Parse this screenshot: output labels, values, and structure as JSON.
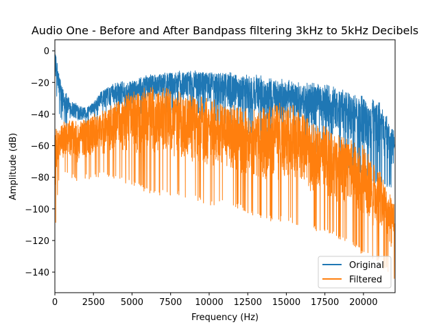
{
  "chart_data": {
    "type": "line",
    "title": "Audio One - Before and After Bandpass filtering 3kHz to 5kHz Decibels",
    "xlabel": "Frequency (Hz)",
    "ylabel": "Amplitude (dB)",
    "xlim": [
      0,
      22050
    ],
    "ylim": [
      -153,
      7
    ],
    "xticks": [
      0,
      2500,
      5000,
      7500,
      10000,
      12500,
      15000,
      17500,
      20000
    ],
    "xtick_labels": [
      "0",
      "2500",
      "5000",
      "7500",
      "10000",
      "12500",
      "15000",
      "17500",
      "20000"
    ],
    "yticks": [
      0,
      -20,
      -40,
      -60,
      -80,
      -100,
      -120,
      -140
    ],
    "ytick_labels": [
      "0",
      "−20",
      "−40",
      "−60",
      "−80",
      "−100",
      "−120",
      "−140"
    ],
    "grid": false,
    "legend_position": "bottom-right",
    "series": [
      {
        "name": "Original",
        "color": "#1f77b4",
        "x": [
          0,
          250,
          500,
          1000,
          1500,
          2000,
          2500,
          3000,
          3500,
          4000,
          5000,
          6000,
          7000,
          8000,
          9000,
          10000,
          11000,
          12000,
          13000,
          14000,
          15000,
          16000,
          17000,
          18000,
          19000,
          20000,
          21000,
          22000
        ],
        "upper": [
          2,
          -12,
          -22,
          -30,
          -33,
          -36,
          -32,
          -25,
          -22,
          -20,
          -18,
          -15,
          -13,
          -12,
          -12,
          -12,
          -13,
          -14,
          -15,
          -17,
          -18,
          -20,
          -20,
          -22,
          -24,
          -28,
          -32,
          -50
        ],
        "lower": [
          -25,
          -40,
          -48,
          -50,
          -50,
          -48,
          -45,
          -43,
          -42,
          -42,
          -42,
          -40,
          -40,
          -41,
          -42,
          -45,
          -48,
          -50,
          -55,
          -58,
          -60,
          -62,
          -65,
          -70,
          -75,
          -80,
          -85,
          -88
        ]
      },
      {
        "name": "Filtered",
        "color": "#ff7f0e",
        "x": [
          0,
          250,
          500,
          1000,
          1500,
          2000,
          2500,
          3000,
          3500,
          4000,
          5000,
          6000,
          7000,
          8000,
          9000,
          10000,
          11000,
          12000,
          13000,
          14000,
          15000,
          16000,
          17000,
          18000,
          19000,
          20000,
          21000,
          22000
        ],
        "upper": [
          -45,
          -48,
          -45,
          -42,
          -45,
          -42,
          -40,
          -38,
          -35,
          -30,
          -25,
          -23,
          -22,
          -25,
          -28,
          -30,
          -32,
          -35,
          -37,
          -35,
          -30,
          -40,
          -45,
          -50,
          -55,
          -60,
          -75,
          -95
        ],
        "lower": [
          -120,
          -82,
          -80,
          -80,
          -85,
          -82,
          -80,
          -80,
          -80,
          -82,
          -85,
          -90,
          -92,
          -92,
          -95,
          -98,
          -98,
          -100,
          -105,
          -108,
          -108,
          -112,
          -115,
          -118,
          -122,
          -130,
          -135,
          -145
        ]
      }
    ]
  }
}
